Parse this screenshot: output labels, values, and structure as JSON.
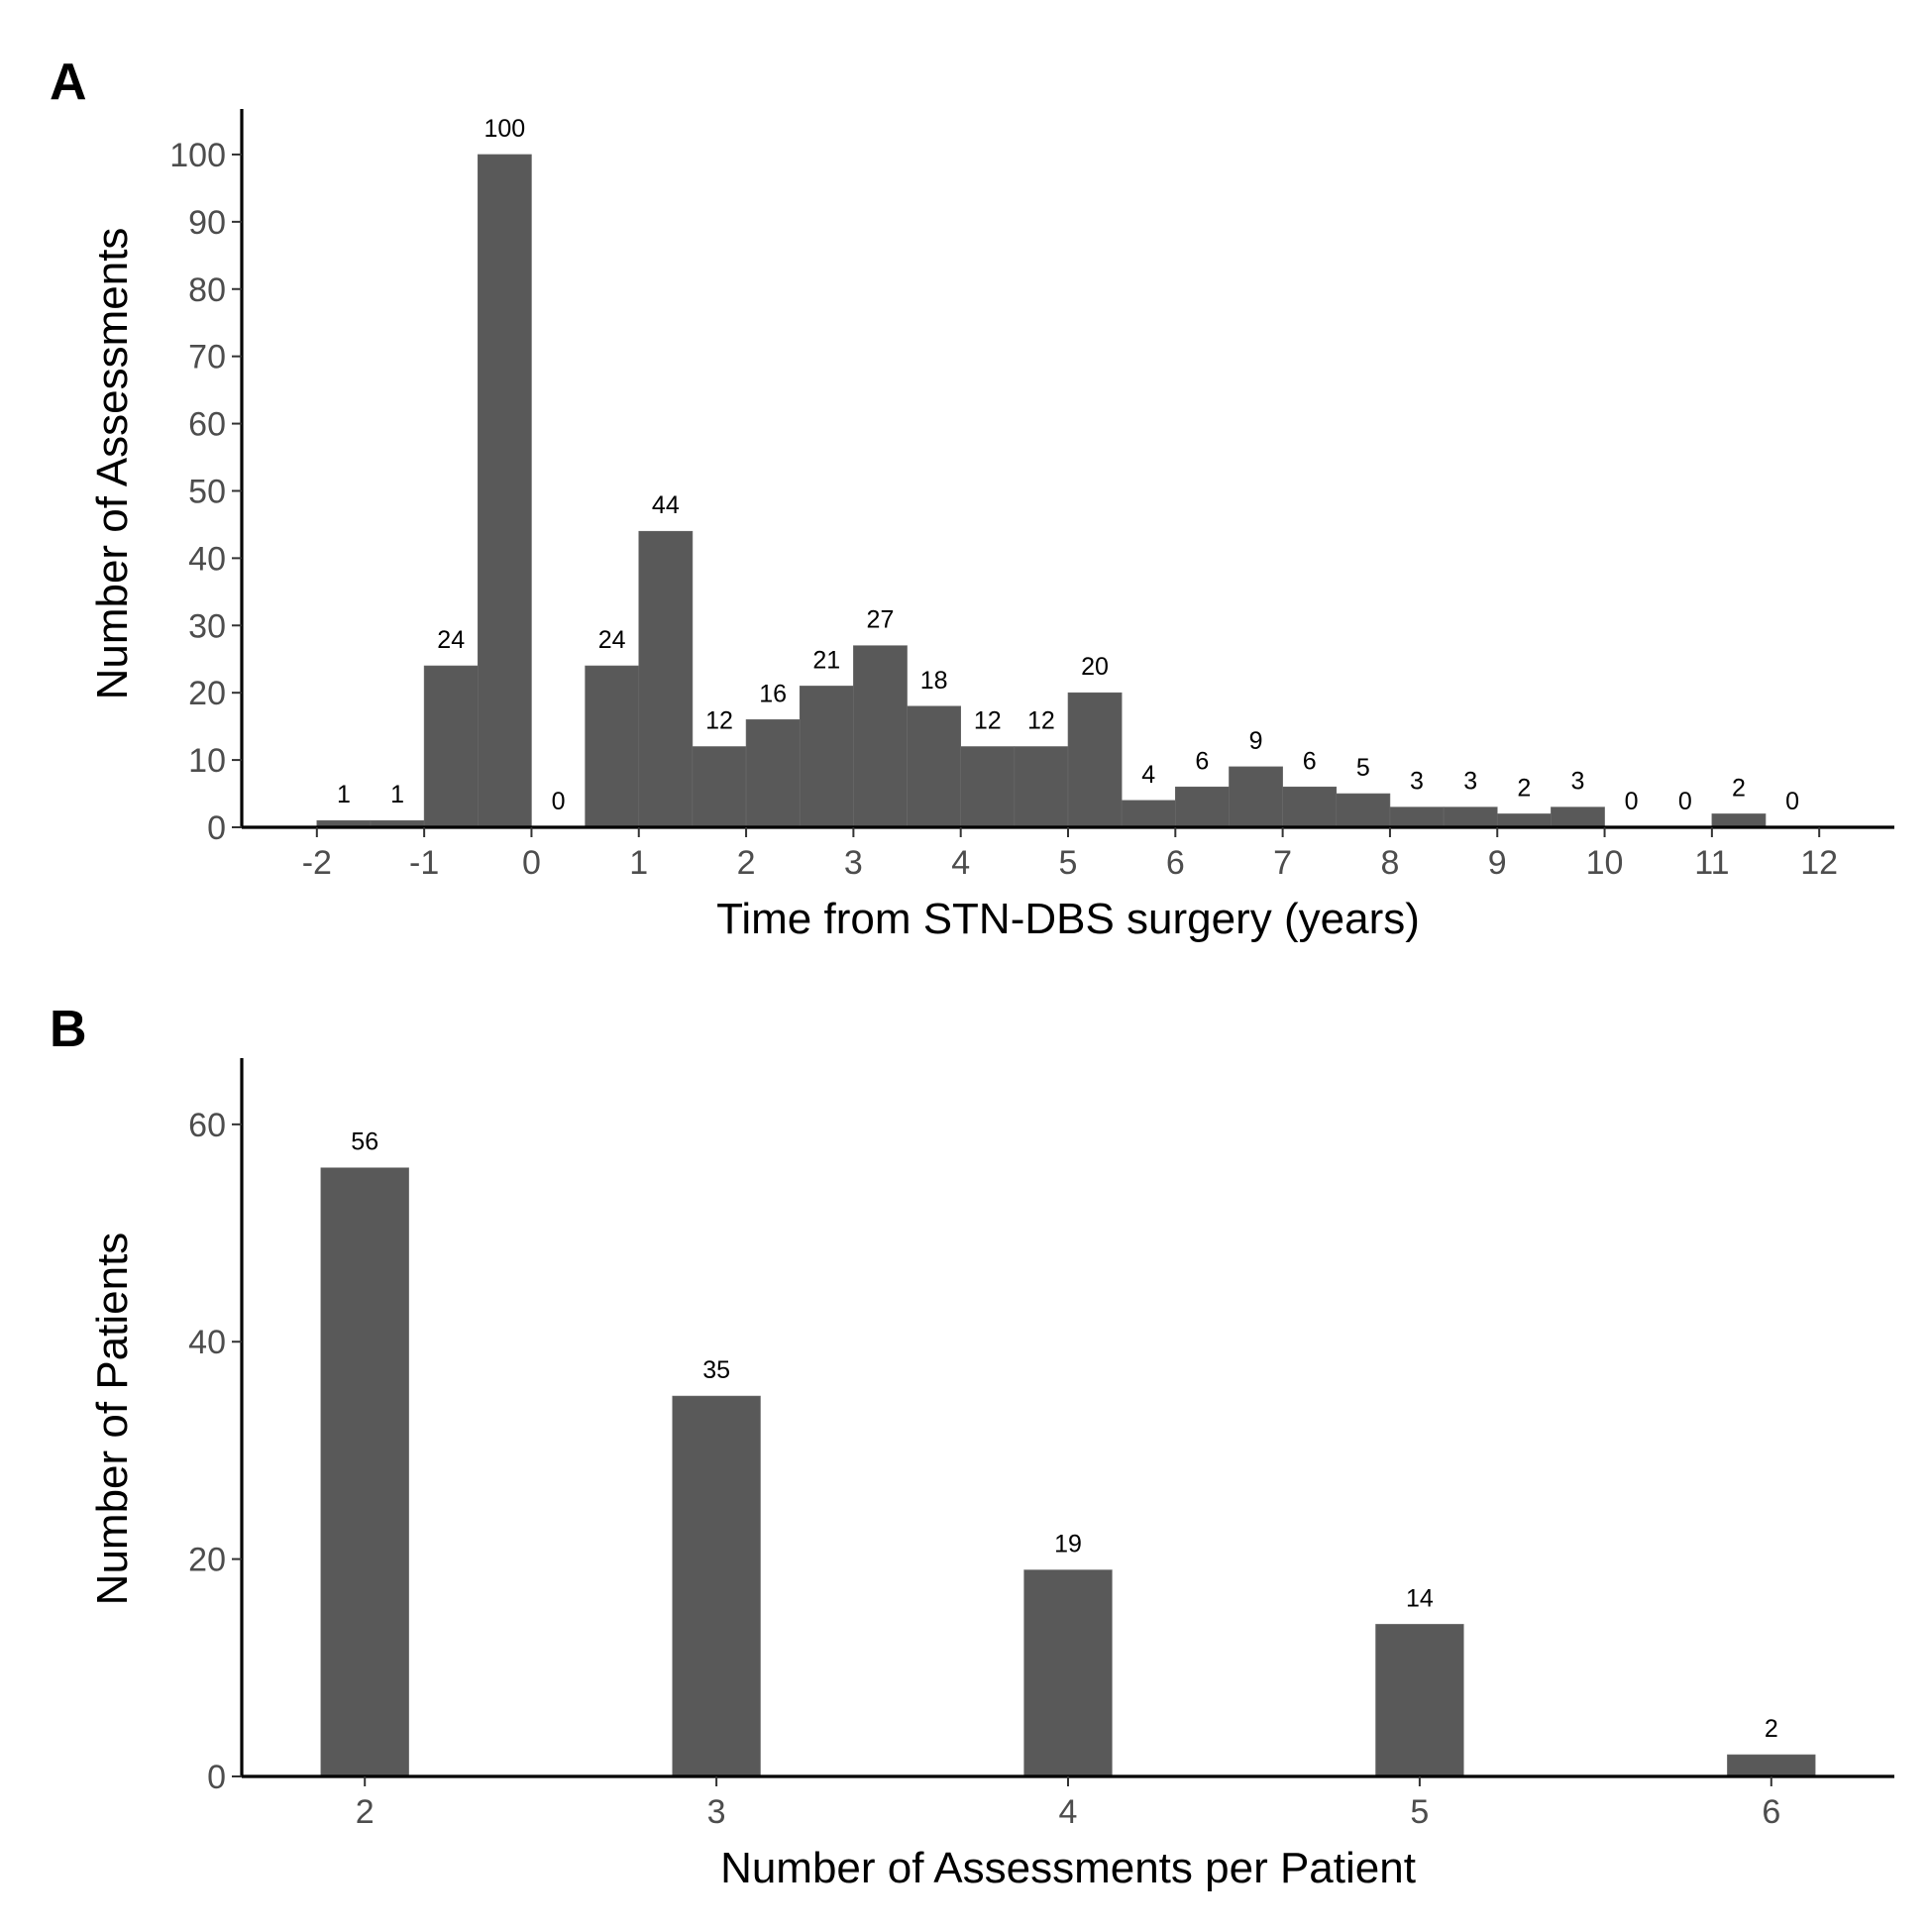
{
  "chart_data": [
    {
      "type": "bar",
      "panel": "A",
      "xlabel": "Time from STN-DBS surgery (years)",
      "ylabel": "Number of Assessments",
      "bin_width": 0.5,
      "x": [
        -2,
        -1.5,
        -1,
        -0.5,
        0,
        0.5,
        1,
        1.5,
        2,
        2.5,
        3,
        3.5,
        4,
        4.5,
        5,
        5.5,
        6,
        6.5,
        7,
        7.5,
        8,
        8.5,
        9,
        9.5,
        10,
        10.5,
        11,
        11.5
      ],
      "values": [
        1,
        1,
        24,
        100,
        0,
        24,
        44,
        12,
        16,
        21,
        27,
        18,
        12,
        12,
        20,
        4,
        6,
        9,
        6,
        5,
        3,
        3,
        2,
        3,
        0,
        0,
        2,
        0
      ],
      "xlim": [
        -2.7,
        12.7
      ],
      "ylim": [
        0,
        105
      ],
      "xticks": [
        -2,
        -1,
        0,
        1,
        2,
        3,
        4,
        5,
        6,
        7,
        8,
        9,
        10,
        11,
        12
      ],
      "xtick_labels": [
        "-2",
        "-1",
        "0",
        "1",
        "2",
        "3",
        "4",
        "5",
        "6",
        "7",
        "8",
        "9",
        "10",
        "11",
        "12"
      ],
      "yticks": [
        0,
        10,
        20,
        30,
        40,
        50,
        60,
        70,
        80,
        90,
        100
      ],
      "ytick_labels": [
        "0",
        "10",
        "20",
        "30",
        "40",
        "50",
        "60",
        "70",
        "80",
        "90",
        "100"
      ],
      "grid": false,
      "legend": "none",
      "bar_color": "#595959"
    },
    {
      "type": "bar",
      "panel": "B",
      "xlabel": "Number of Assessments per Patient",
      "ylabel": "Number of Patients",
      "categories": [
        "2",
        "3",
        "4",
        "5",
        "6"
      ],
      "x": [
        2,
        3,
        4,
        5,
        6
      ],
      "values": [
        56,
        35,
        19,
        14,
        2
      ],
      "bar_width": 0.25,
      "xlim": [
        1.65,
        6.35
      ],
      "ylim": [
        0,
        65
      ],
      "yticks": [
        0,
        20,
        40,
        60
      ],
      "ytick_labels": [
        "0",
        "20",
        "40",
        "60"
      ],
      "grid": false,
      "legend": "none",
      "bar_color": "#595959"
    }
  ]
}
